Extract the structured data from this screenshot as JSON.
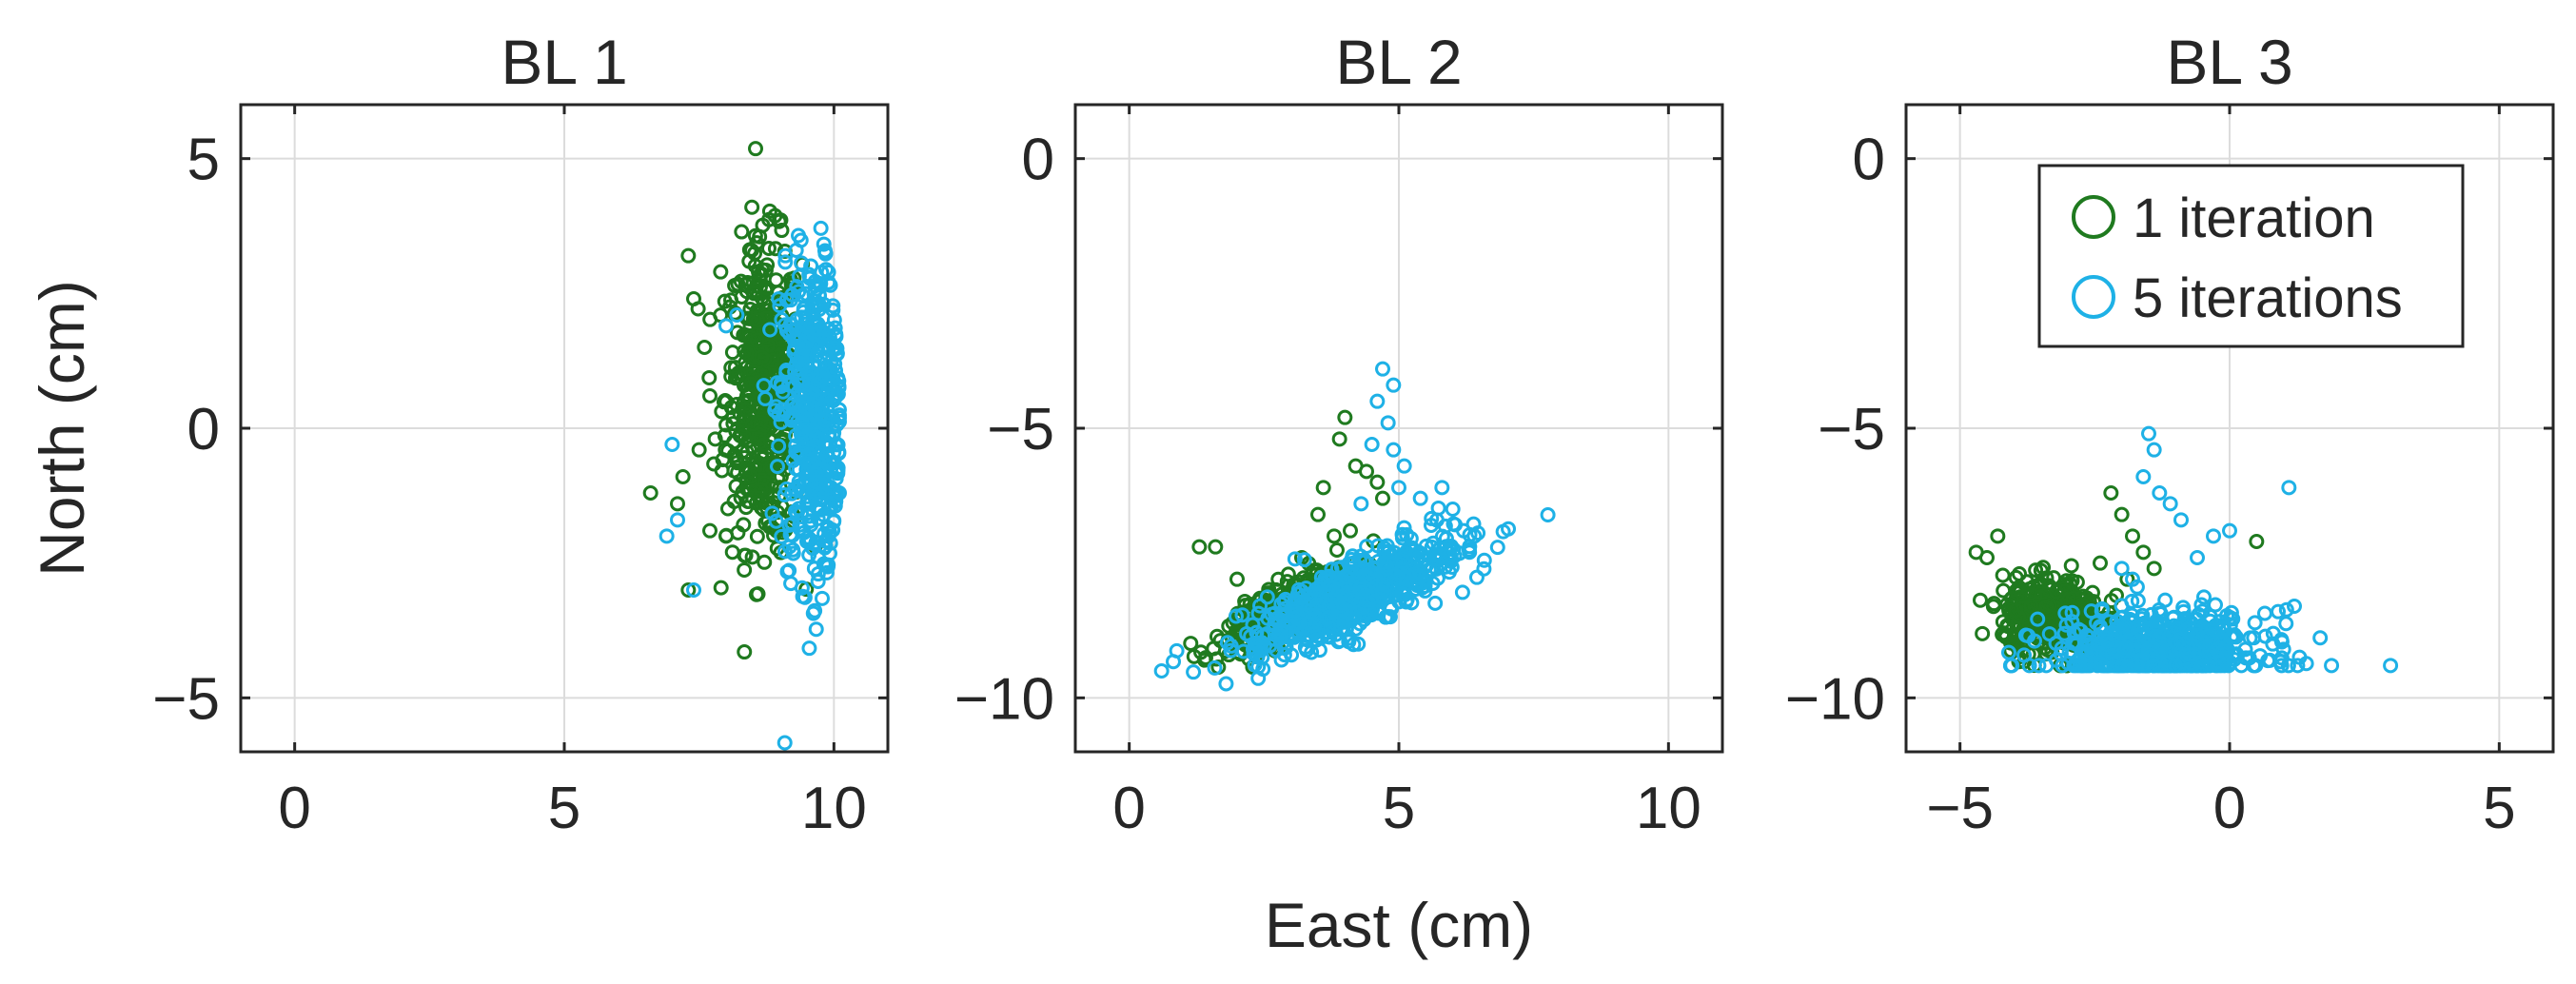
{
  "chart_data": [
    {
      "type": "scatter",
      "title": "BL 1",
      "xlabel": "",
      "ylabel": "North (cm)",
      "xlim": [
        -1,
        11
      ],
      "ylim": [
        -6,
        6
      ],
      "xticks": [
        "0",
        "5",
        "10"
      ],
      "xtick_values": [
        0,
        5,
        10
      ],
      "yticks": [
        "5",
        "0",
        "−5"
      ],
      "ytick_values": [
        5,
        0,
        -5
      ],
      "grid": true,
      "series": [
        {
          "name": "1 iteration",
          "color": "#1f7a1f",
          "cluster": {
            "cx": 8.7,
            "cy": 0.6,
            "sx": 0.35,
            "sy": 1.4,
            "n": 500
          },
          "points": [
            [
              7.3,
              3.2
            ],
            [
              7.9,
              2.9
            ],
            [
              7.4,
              2.4
            ],
            [
              7.6,
              1.5
            ],
            [
              7.7,
              0.6
            ],
            [
              7.8,
              -0.2
            ],
            [
              7.5,
              -0.4
            ],
            [
              7.2,
              -0.9
            ],
            [
              6.6,
              -1.2
            ],
            [
              7.1,
              -1.4
            ],
            [
              7.7,
              -1.9
            ],
            [
              8.0,
              -2.0
            ],
            [
              7.3,
              -3.0
            ],
            [
              8.4,
              2.7
            ],
            [
              8.6,
              2.9
            ]
          ]
        },
        {
          "name": "5 iterations",
          "color": "#1eb1e6",
          "cluster": {
            "cx": 9.6,
            "cy": 0.2,
            "sx": 0.3,
            "sy": 1.5,
            "n": 500
          },
          "points": [
            [
              9.1,
              3.2
            ],
            [
              9.3,
              3.3
            ],
            [
              8.2,
              2.1
            ],
            [
              8.0,
              1.9
            ],
            [
              7.0,
              -0.3
            ],
            [
              6.9,
              -2.0
            ],
            [
              7.1,
              -1.7
            ],
            [
              9.5,
              -2.1
            ],
            [
              9.9,
              -2.0
            ],
            [
              7.4,
              -3.0
            ],
            [
              10.0,
              1.5
            ],
            [
              10.1,
              -1.2
            ]
          ]
        }
      ]
    },
    {
      "type": "scatter",
      "title": "BL 2",
      "xlabel": "East (cm)",
      "ylabel": "",
      "xlim": [
        -1,
        11
      ],
      "ylim": [
        -11,
        1
      ],
      "xticks": [
        "0",
        "5",
        "10"
      ],
      "xtick_values": [
        0,
        5,
        10
      ],
      "yticks": [
        "0",
        "−5",
        "−10"
      ],
      "ytick_values": [
        0,
        -5,
        -10
      ],
      "grid": true,
      "series": [
        {
          "name": "1 iteration",
          "color": "#1f7a1f",
          "cluster": {
            "cx": 2.9,
            "cy": -8.4,
            "sx": 0.6,
            "sy": 0.4,
            "n": 400
          },
          "points": [
            [
              1.3,
              -7.2
            ],
            [
              1.6,
              -7.2
            ],
            [
              1.4,
              -9.3
            ],
            [
              2.0,
              -7.8
            ],
            [
              4.0,
              -4.8
            ],
            [
              3.9,
              -5.2
            ],
            [
              4.2,
              -5.7
            ],
            [
              4.4,
              -5.8
            ],
            [
              4.6,
              -6.0
            ],
            [
              3.6,
              -6.1
            ],
            [
              3.5,
              -6.6
            ],
            [
              3.8,
              -7.0
            ],
            [
              4.1,
              -6.9
            ],
            [
              4.7,
              -6.3
            ],
            [
              3.2,
              -7.4
            ]
          ]
        },
        {
          "name": "5 iterations",
          "color": "#1eb1e6",
          "cluster": {
            "cx": 4.2,
            "cy": -8.1,
            "sx": 1.0,
            "sy": 0.55,
            "n": 600
          },
          "points": [
            [
              0.6,
              -9.5
            ],
            [
              4.7,
              -3.9
            ],
            [
              4.9,
              -4.2
            ],
            [
              4.6,
              -4.5
            ],
            [
              4.8,
              -4.9
            ],
            [
              4.5,
              -5.3
            ],
            [
              4.9,
              -5.4
            ],
            [
              5.1,
              -5.7
            ],
            [
              5.0,
              -6.1
            ],
            [
              5.4,
              -6.3
            ],
            [
              5.8,
              -6.1
            ],
            [
              6.0,
              -6.5
            ],
            [
              6.2,
              -6.9
            ],
            [
              6.4,
              -7.0
            ],
            [
              4.3,
              -6.4
            ],
            [
              5.6,
              -6.8
            ],
            [
              2.3,
              -9.1
            ]
          ]
        }
      ]
    },
    {
      "type": "scatter",
      "title": "BL 3",
      "xlabel": "",
      "ylabel": "",
      "xlim": [
        -6,
        6
      ],
      "ylim": [
        -11,
        1
      ],
      "xticks": [
        "−5",
        "0",
        "5"
      ],
      "xtick_values": [
        -5,
        0,
        5
      ],
      "yticks": [
        "0",
        "−5",
        "−10"
      ],
      "ytick_values": [
        0,
        -5,
        -10
      ],
      "grid": true,
      "legend": "top-right",
      "series": [
        {
          "name": "1 iteration",
          "color": "#1f7a1f",
          "cluster": {
            "cx": -3.3,
            "cy": -8.5,
            "sx": 0.45,
            "sy": 0.35,
            "n": 350
          },
          "points": [
            [
              -4.7,
              -7.3
            ],
            [
              -4.5,
              -7.4
            ],
            [
              -4.3,
              -7.0
            ],
            [
              -3.9,
              -7.7
            ],
            [
              -2.2,
              -6.2
            ],
            [
              -2.0,
              -6.6
            ],
            [
              -1.8,
              -7.0
            ],
            [
              -1.6,
              -7.3
            ],
            [
              -2.4,
              -7.5
            ],
            [
              -1.9,
              -7.8
            ],
            [
              -2.1,
              -8.1
            ],
            [
              0.5,
              -7.1
            ],
            [
              -2.6,
              -8.2
            ],
            [
              -1.4,
              -7.6
            ]
          ]
        },
        {
          "name": "5 iterations",
          "color": "#1eb1e6",
          "cluster": {
            "cx": -1.3,
            "cy": -9.1,
            "sx": 1.0,
            "sy": 0.35,
            "n": 550
          },
          "points": [
            [
              -1.5,
              -5.1
            ],
            [
              -1.4,
              -5.4
            ],
            [
              -1.6,
              -5.9
            ],
            [
              -1.3,
              -6.2
            ],
            [
              -1.1,
              -6.4
            ],
            [
              -0.9,
              -6.7
            ],
            [
              -0.3,
              -7.0
            ],
            [
              0.0,
              -6.9
            ],
            [
              1.1,
              -6.1
            ],
            [
              -0.6,
              -7.4
            ],
            [
              -1.8,
              -7.8
            ],
            [
              0.9,
              -8.4
            ],
            [
              1.2,
              -8.3
            ],
            [
              0.8,
              -9.0
            ],
            [
              1.0,
              -9.1
            ],
            [
              -2.0,
              -7.6
            ]
          ]
        }
      ]
    }
  ]
}
